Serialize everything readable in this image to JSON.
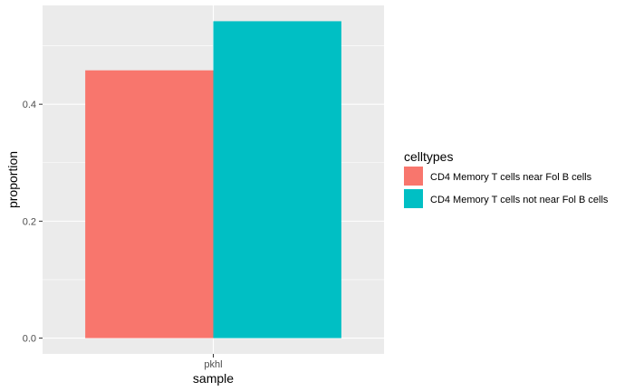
{
  "chart_data": {
    "type": "bar",
    "categories": [
      "pkhl"
    ],
    "series": [
      {
        "name": "CD4 Memory T cells near Fol B cells",
        "values": [
          0.458
        ],
        "color": "#F8766D"
      },
      {
        "name": "CD4 Memory T cells not near Fol B cells",
        "values": [
          0.542
        ],
        "color": "#00BFC4"
      }
    ],
    "xlabel": "sample",
    "ylabel": "proportion",
    "ylim": [
      -0.027,
      0.569
    ],
    "yticks": [
      0.0,
      0.2,
      0.4
    ],
    "ytick_labels": [
      "0.0",
      "0.2",
      "0.4"
    ],
    "grid": true,
    "panel_background": "#EBEBEB",
    "legend": {
      "title": "celltypes",
      "position": "right"
    }
  }
}
